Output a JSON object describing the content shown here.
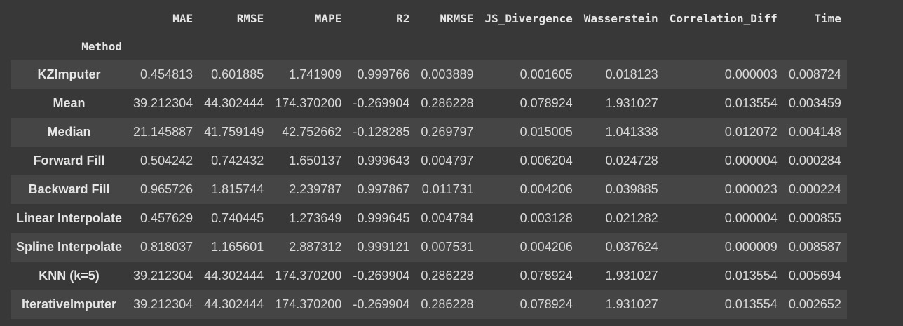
{
  "table": {
    "index_name": "Method",
    "columns": [
      "MAE",
      "RMSE",
      "MAPE",
      "R2",
      "NRMSE",
      "JS_Divergence",
      "Wasserstein",
      "Correlation_Diff",
      "Time"
    ],
    "rows": [
      {
        "method": "KZImputer",
        "values": [
          "0.454813",
          "0.601885",
          "1.741909",
          "0.999766",
          "0.003889",
          "0.001605",
          "0.018123",
          "0.000003",
          "0.008724"
        ]
      },
      {
        "method": "Mean",
        "values": [
          "39.212304",
          "44.302444",
          "174.370200",
          "-0.269904",
          "0.286228",
          "0.078924",
          "1.931027",
          "0.013554",
          "0.003459"
        ]
      },
      {
        "method": "Median",
        "values": [
          "21.145887",
          "41.759149",
          "42.752662",
          "-0.128285",
          "0.269797",
          "0.015005",
          "1.041338",
          "0.012072",
          "0.004148"
        ]
      },
      {
        "method": "Forward Fill",
        "values": [
          "0.504242",
          "0.742432",
          "1.650137",
          "0.999643",
          "0.004797",
          "0.006204",
          "0.024728",
          "0.000004",
          "0.000284"
        ]
      },
      {
        "method": "Backward Fill",
        "values": [
          "0.965726",
          "1.815744",
          "2.239787",
          "0.997867",
          "0.011731",
          "0.004206",
          "0.039885",
          "0.000023",
          "0.000224"
        ]
      },
      {
        "method": "Linear Interpolate",
        "values": [
          "0.457629",
          "0.740445",
          "1.273649",
          "0.999645",
          "0.004784",
          "0.003128",
          "0.021282",
          "0.000004",
          "0.000855"
        ]
      },
      {
        "method": "Spline Interpolate",
        "values": [
          "0.818037",
          "1.165601",
          "2.887312",
          "0.999121",
          "0.007531",
          "0.004206",
          "0.037624",
          "0.000009",
          "0.008587"
        ]
      },
      {
        "method": "KNN (k=5)",
        "values": [
          "39.212304",
          "44.302444",
          "174.370200",
          "-0.269904",
          "0.286228",
          "0.078924",
          "1.931027",
          "0.013554",
          "0.005694"
        ]
      },
      {
        "method": "IterativeImputer",
        "values": [
          "39.212304",
          "44.302444",
          "174.370200",
          "-0.269904",
          "0.286228",
          "0.078924",
          "1.931027",
          "0.013554",
          "0.002652"
        ]
      }
    ]
  }
}
